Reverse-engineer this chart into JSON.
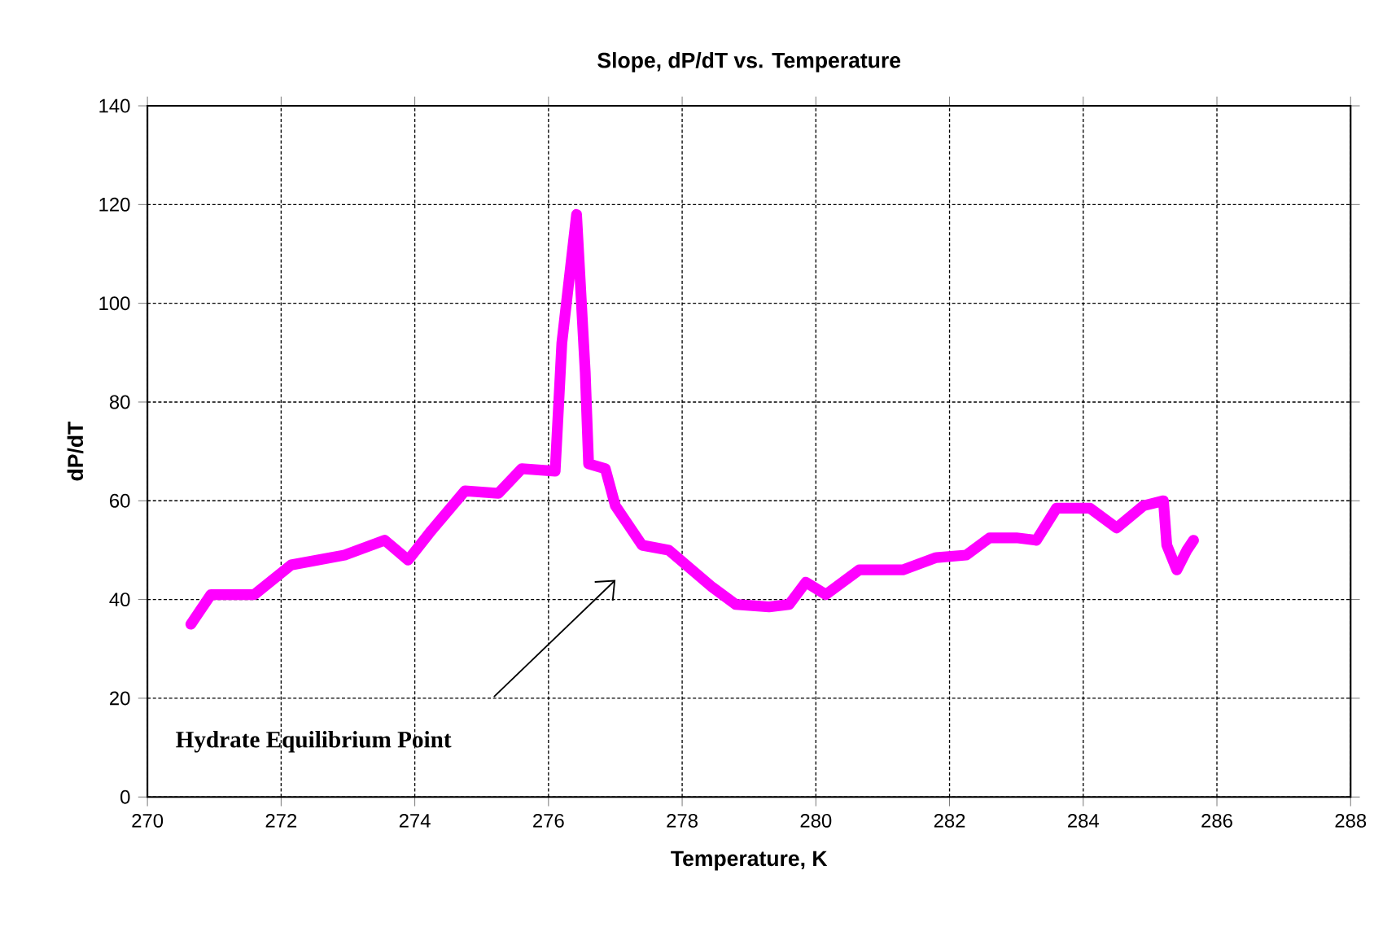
{
  "chart_data": {
    "type": "line",
    "title": "Slope, dP/dT vs. Temperature",
    "xlabel": "Temperature, K",
    "ylabel": "dP/dT",
    "x": [
      270.65,
      270.95,
      271.6,
      272.15,
      272.95,
      273.55,
      273.9,
      274.25,
      274.75,
      275.25,
      275.6,
      276.1,
      276.2,
      276.42,
      276.55,
      276.6,
      276.85,
      277.0,
      277.4,
      277.8,
      278.45,
      278.8,
      279.3,
      279.6,
      279.85,
      280.15,
      280.65,
      281.3,
      281.8,
      282.25,
      282.6,
      283.0,
      283.3,
      283.6,
      284.1,
      284.5,
      284.9,
      285.2,
      285.25,
      285.4,
      285.55,
      285.65
    ],
    "series": [
      {
        "color": "#ff00ff",
        "values": [
          35,
          41,
          41,
          47,
          49,
          52,
          48,
          54,
          62,
          61.5,
          66.5,
          66,
          92,
          118,
          86,
          67.5,
          66.5,
          59,
          51,
          50,
          42.5,
          39,
          38.5,
          39,
          43.5,
          41,
          46,
          46,
          48.5,
          49,
          52.5,
          52.5,
          52,
          58.5,
          58.5,
          54.5,
          59,
          60,
          51,
          46,
          50,
          52
        ]
      }
    ],
    "xlim": [
      270,
      288
    ],
    "ylim": [
      0,
      140
    ],
    "xticks": [
      270,
      272,
      274,
      276,
      278,
      280,
      282,
      284,
      286,
      288
    ],
    "yticks": [
      0,
      20,
      40,
      60,
      80,
      100,
      120,
      140
    ],
    "grid": true,
    "annotations": [
      "Hydrate Equilibrium Point"
    ]
  }
}
